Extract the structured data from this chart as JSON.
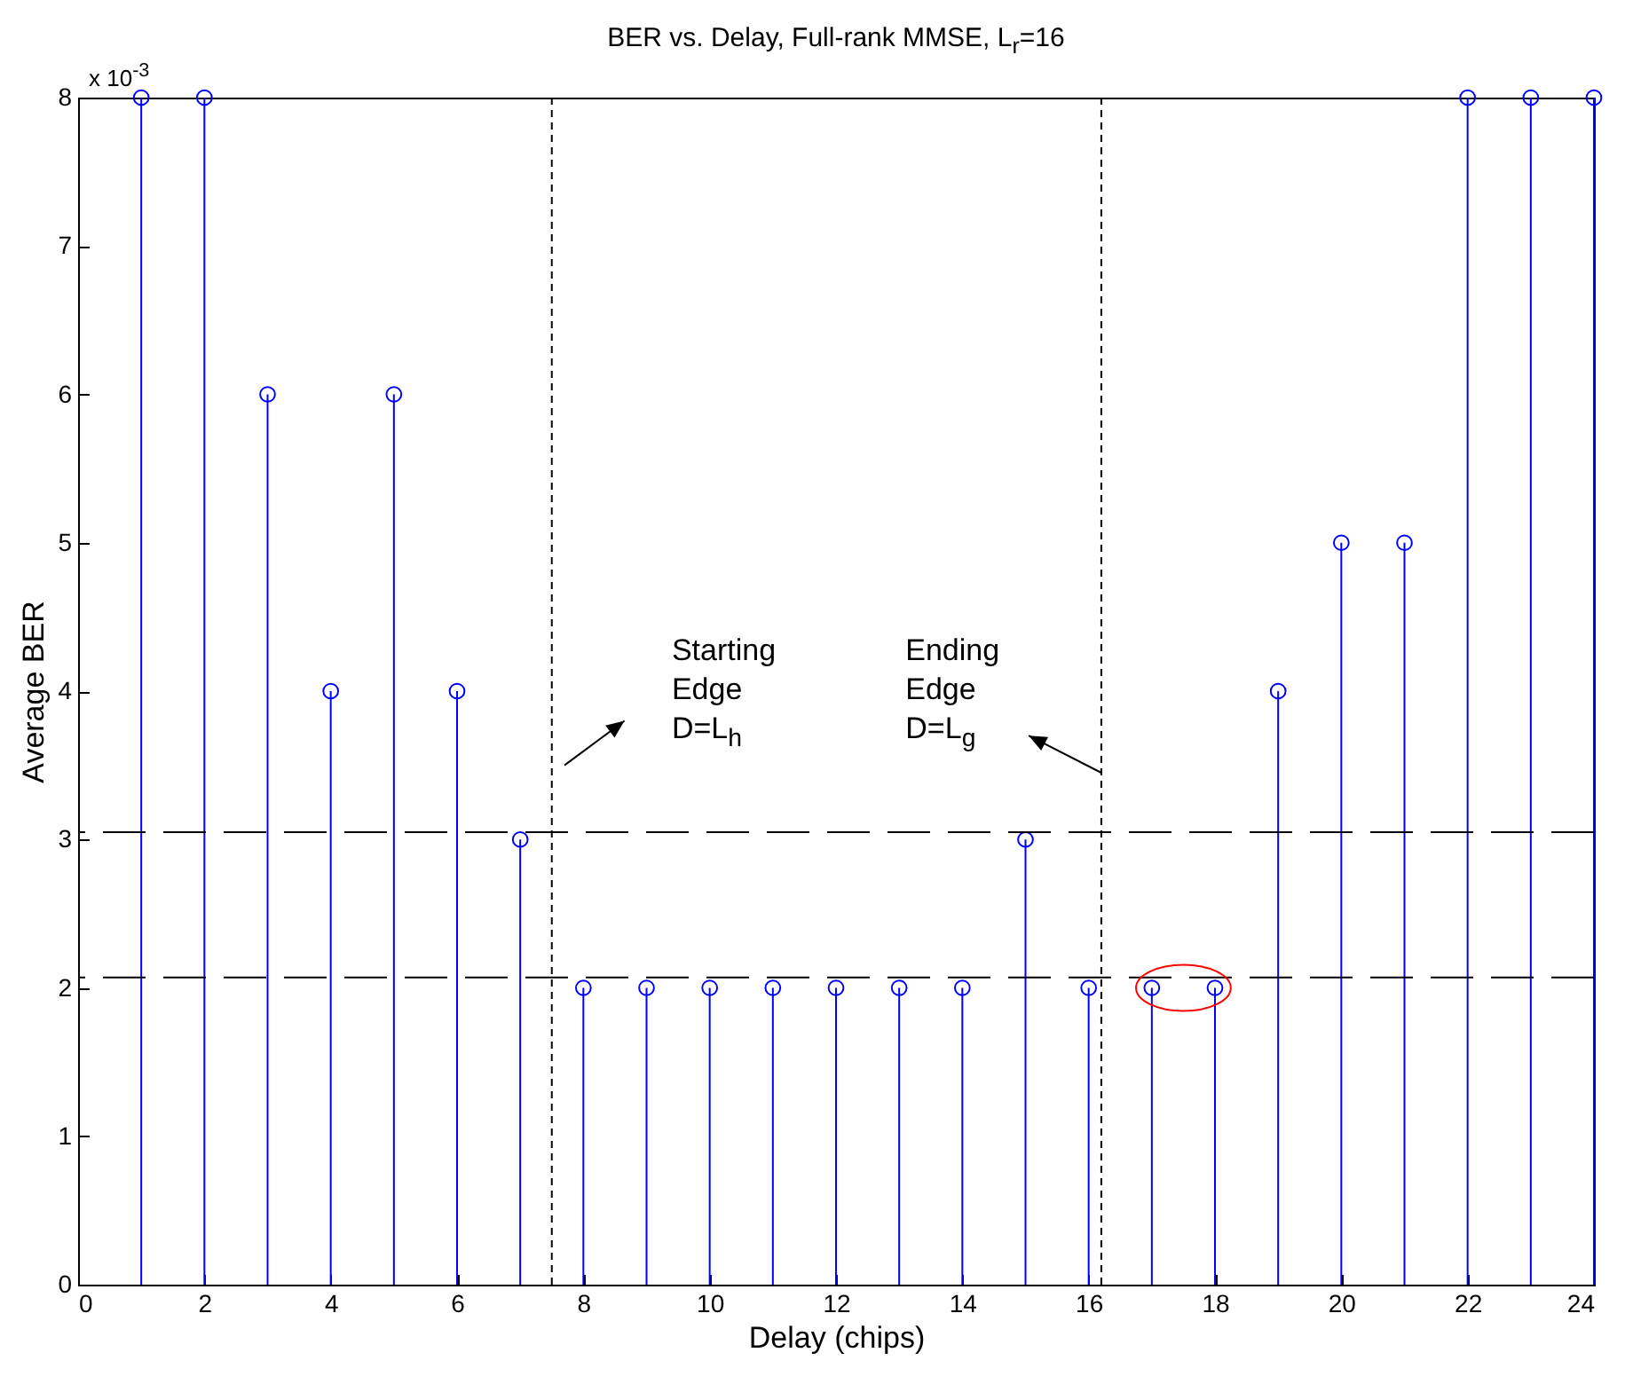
{
  "chart_data": {
    "type": "lollipop",
    "title": "BER vs. Delay, Full-rank MMSE, L$_{r}$=16",
    "xlabel": "Delay (chips)",
    "ylabel": "Average BER",
    "x": [
      1,
      2,
      3,
      4,
      5,
      6,
      7,
      8,
      9,
      10,
      11,
      12,
      13,
      14,
      15,
      16,
      17,
      18,
      19,
      20,
      21,
      22,
      23,
      24
    ],
    "values": [
      8,
      8,
      6,
      4,
      6,
      4,
      3,
      2,
      2,
      2,
      2,
      2,
      2,
      2,
      3,
      2,
      2,
      2,
      4,
      5,
      5,
      8,
      8,
      8
    ],
    "color": "#0000ff",
    "marker": "circle",
    "xlim": [
      0,
      24
    ],
    "xticks": [
      0,
      2,
      4,
      6,
      8,
      10,
      12,
      14,
      16,
      18,
      20,
      22,
      24
    ],
    "ylim": [
      0,
      8
    ],
    "yticks": [
      0,
      1,
      2,
      3,
      4,
      5,
      6,
      7,
      8
    ],
    "ref_lines": [
      {
        "axis": "y",
        "value": 3.05,
        "line_style": "dashed"
      },
      {
        "axis": "y",
        "value": 2.07,
        "line_style": "dashed"
      },
      {
        "axis": "x",
        "value": 7.5,
        "line_style": "dotted"
      },
      {
        "axis": "x",
        "value": 16.2,
        "line_style": "dotted"
      }
    ],
    "annotations": [
      "x 10$^{-3}$",
      "Starting\nEdge\nD=L$_{h}$",
      "Ending\nEdge\nD=L$_{g}$"
    ]
  }
}
